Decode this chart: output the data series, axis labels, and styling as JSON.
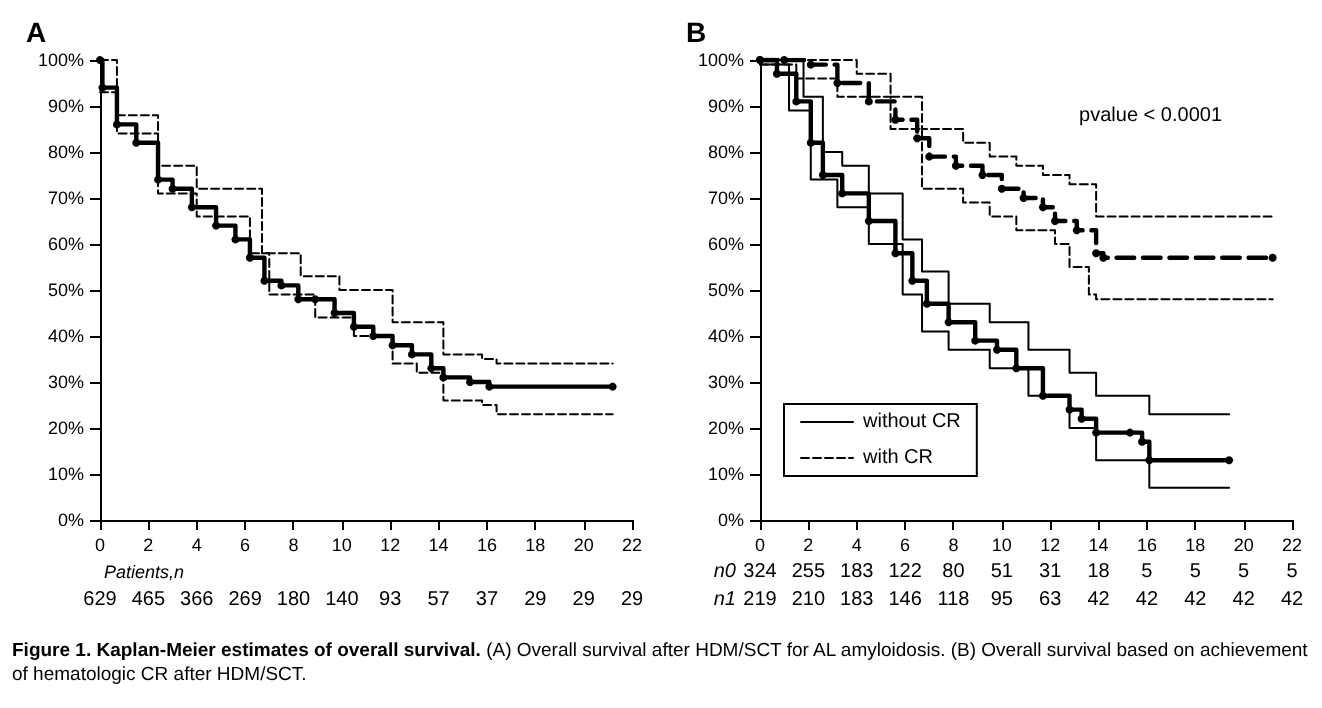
{
  "chart_data": [
    {
      "type": "step",
      "title": "A",
      "xlim": [
        0,
        22
      ],
      "xticks": [
        0,
        2,
        4,
        6,
        8,
        10,
        12,
        14,
        16,
        18,
        20,
        22
      ],
      "ylim": [
        0,
        100
      ],
      "yticks": [
        {
          "value": 0,
          "label": "0%"
        },
        {
          "value": 10,
          "label": "10%"
        },
        {
          "value": 20,
          "label": "20%"
        },
        {
          "value": 30,
          "label": "30%"
        },
        {
          "value": 40,
          "label": "40%"
        },
        {
          "value": 50,
          "label": "50%"
        },
        {
          "value": 60,
          "label": "60%"
        },
        {
          "value": 70,
          "label": "70%"
        },
        {
          "value": 80,
          "label": "80%"
        },
        {
          "value": 90,
          "label": "90%"
        },
        {
          "value": 100,
          "label": "100%"
        }
      ],
      "series": [
        {
          "color": "#000000",
          "marker": "circle",
          "line_style": "solid",
          "x": [
            0,
            0.1,
            0.7,
            1.5,
            2.4,
            3.0,
            3.8,
            4.8,
            5.6,
            6.2,
            6.8,
            7.5,
            8.2,
            8.9,
            9.7,
            10.5,
            11.3,
            12.1,
            12.9,
            13.7,
            14.2,
            15.3,
            16.1,
            21.2
          ],
          "values": [
            100,
            94,
            86,
            82,
            74,
            72,
            68,
            64,
            61,
            57,
            52,
            51,
            48,
            48,
            45,
            42,
            40,
            38,
            36,
            33,
            31,
            30,
            29,
            29
          ]
        },
        {
          "color": "#000000",
          "line_style": "dashed",
          "x": [
            0,
            0.7,
            2.4,
            4.0,
            6.7,
            8.3,
            9.9,
            12.1,
            14.2,
            15.8,
            16.4,
            21.2
          ],
          "values": [
            100,
            88,
            77,
            72,
            58,
            53,
            50,
            43,
            36,
            35,
            34,
            34
          ]
        },
        {
          "color": "#000000",
          "line_style": "dashed",
          "x": [
            0,
            0.7,
            2.4,
            4.0,
            6.2,
            7.0,
            8.9,
            10.5,
            12.1,
            13.1,
            14.2,
            15.8,
            16.4,
            21.2
          ],
          "values": [
            93,
            84,
            71,
            66,
            58,
            49,
            44,
            40,
            34,
            32,
            26,
            25,
            23,
            23
          ]
        }
      ],
      "annotations": [
        "Patients,n",
        "629 465 366 269 180 140 93 57 37 29 29 29"
      ]
    },
    {
      "type": "step",
      "title": "B",
      "xlim": [
        0,
        22
      ],
      "xticks": [
        0,
        2,
        4,
        6,
        8,
        10,
        12,
        14,
        16,
        18,
        20,
        22
      ],
      "ylim": [
        0,
        100
      ],
      "yticks": [
        {
          "value": 0,
          "label": "0%"
        },
        {
          "value": 10,
          "label": "10%"
        },
        {
          "value": 20,
          "label": "20%"
        },
        {
          "value": 30,
          "label": "30%"
        },
        {
          "value": 40,
          "label": "40%"
        },
        {
          "value": 50,
          "label": "50%"
        },
        {
          "value": 60,
          "label": "60%"
        },
        {
          "value": 70,
          "label": "70%"
        },
        {
          "value": 80,
          "label": "80%"
        },
        {
          "value": 90,
          "label": "90%"
        },
        {
          "value": 100,
          "label": "100%"
        }
      ],
      "legend": "bottom left",
      "series": [
        {
          "name": "without CR",
          "color": "#000000",
          "marker": "circle",
          "line_style": "solid",
          "x": [
            0,
            0.7,
            1.5,
            2.1,
            2.6,
            3.4,
            4.5,
            5.6,
            6.3,
            6.9,
            7.8,
            8.9,
            9.8,
            10.6,
            11.7,
            12.8,
            13.3,
            13.9,
            15.3,
            15.8,
            16.1,
            19.4
          ],
          "values": [
            100,
            97,
            91,
            82,
            75,
            71,
            65,
            58,
            52,
            47,
            43,
            39,
            37,
            33,
            27,
            24,
            22,
            19,
            19,
            17,
            13,
            13
          ]
        },
        {
          "color": "#000000",
          "line_style": "solid",
          "x": [
            0,
            1.8,
            2.6,
            3.4,
            4.5,
            5.9,
            6.7,
            7.8,
            9.5,
            11.1,
            12.8,
            13.9,
            15.0,
            16.1,
            19.4
          ],
          "values": [
            100,
            92,
            80,
            77,
            71,
            61,
            54,
            47,
            43,
            37,
            32,
            27,
            27,
            23,
            23
          ]
        },
        {
          "color": "#000000",
          "line_style": "solid",
          "x": [
            0,
            1.2,
            2.1,
            3.2,
            4.5,
            5.9,
            6.7,
            7.8,
            9.5,
            11.1,
            12.8,
            13.9,
            15.5,
            16.1,
            19.4
          ],
          "values": [
            99,
            89,
            74,
            68,
            60,
            49,
            41,
            37,
            33,
            27,
            20,
            13,
            13,
            7,
            7
          ]
        },
        {
          "name": "with CR",
          "color": "#000000",
          "marker": "circle",
          "line_style": "dashed",
          "x": [
            0,
            1.0,
            2.1,
            3.2,
            4.5,
            5.6,
            6.5,
            7.0,
            8.1,
            9.2,
            10.0,
            10.9,
            11.7,
            12.2,
            13.1,
            13.9,
            14.2,
            21.2
          ],
          "values": [
            100,
            100,
            99,
            95,
            91,
            87,
            83,
            79,
            77,
            75,
            72,
            70,
            68,
            65,
            63,
            58,
            57,
            57
          ]
        },
        {
          "color": "#000000",
          "line_style": "dashed",
          "x": [
            0,
            2.6,
            4.0,
            5.4,
            6.7,
            8.4,
            9.5,
            10.6,
            11.7,
            12.8,
            13.9,
            21.2
          ],
          "values": [
            100,
            100,
            97,
            92,
            85,
            82,
            79,
            77,
            75,
            73,
            66,
            66
          ]
        },
        {
          "color": "#000000",
          "line_style": "dashed",
          "x": [
            0,
            1.5,
            3.2,
            5.4,
            6.7,
            8.4,
            9.5,
            10.6,
            12.2,
            12.8,
            13.6,
            13.9,
            21.2
          ],
          "values": [
            99,
            96,
            92,
            85,
            72,
            69,
            66,
            63,
            60,
            55,
            49,
            48,
            48
          ]
        }
      ],
      "subtitle": "pvalue < 0.0001",
      "annotations": [
        "n0 324 255 183 122 80 51 31 18 5 5 5 5",
        "n1 219 210 183 146 118 95 63 42 42 42 42 42"
      ]
    },
    {
      "type": "other",
      "annotations": [
        "Figure 1. Kaplan-Meier estimates of overall survival.",
        "(A) Overall survival after HDM/SCT for AL amyloidosis. (B) Overall survival based on achievement of hematologic CR after HDM/SCT."
      ]
    }
  ]
}
